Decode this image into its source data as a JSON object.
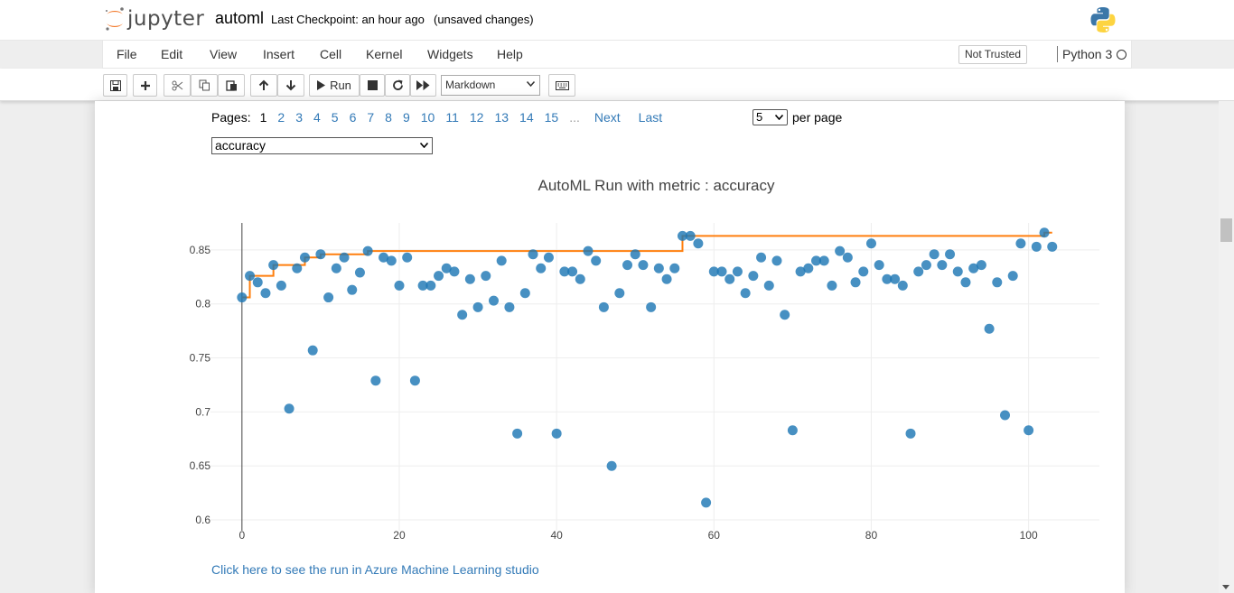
{
  "header": {
    "logo_text": "jupyter",
    "notebook_name": "automl",
    "checkpoint": "Last Checkpoint: an hour ago",
    "autosave": "(unsaved changes)"
  },
  "menubar": {
    "items": [
      "File",
      "Edit",
      "View",
      "Insert",
      "Cell",
      "Kernel",
      "Widgets",
      "Help"
    ],
    "trust": "Not Trusted",
    "kernel": "Python 3"
  },
  "toolbar": {
    "run_label": "Run",
    "cell_type": "Markdown",
    "icons": [
      "save-icon",
      "plus-icon",
      "scissors-icon",
      "copy-icon",
      "paste-icon",
      "arrow-up-icon",
      "arrow-down-icon",
      "play-icon",
      "stop-icon",
      "restart-icon",
      "fast-forward-icon",
      "keyboard-icon"
    ]
  },
  "pager": {
    "label": "Pages:",
    "pages": [
      "1",
      "2",
      "3",
      "4",
      "5",
      "6",
      "7",
      "8",
      "9",
      "10",
      "11",
      "12",
      "13",
      "14",
      "15"
    ],
    "current": "1",
    "ellipsis": "...",
    "next": "Next",
    "last": "Last",
    "per_page_value": "5",
    "per_page_label": "per page"
  },
  "metric_select": {
    "value": "accuracy"
  },
  "link": {
    "azure": "Click here to see the run in Azure Machine Learning studio"
  },
  "chart_data": {
    "type": "scatter",
    "title": "AutoML Run with metric : accuracy",
    "xlabel": "",
    "ylabel": "",
    "xlim": [
      -4,
      109
    ],
    "ylim": [
      0.59,
      0.875
    ],
    "x_ticks": [
      "0",
      "20",
      "40",
      "60",
      "80",
      "100"
    ],
    "y_ticks": [
      "0.6",
      "0.65",
      "0.7",
      "0.75",
      "0.8",
      "0.85"
    ],
    "grid": true,
    "legend": "none",
    "colors": {
      "points": "#1f77b4",
      "best_line": "#ff7f0e"
    },
    "series": [
      {
        "type": "scatter",
        "x": [
          0,
          1,
          2,
          3,
          4,
          5,
          6,
          7,
          8,
          9,
          10,
          11,
          12,
          13,
          14,
          15,
          16,
          17,
          18,
          19,
          20,
          21,
          22,
          23,
          24,
          25,
          26,
          27,
          28,
          29,
          30,
          31,
          32,
          33,
          34,
          35,
          36,
          37,
          38,
          39,
          40,
          41,
          42,
          43,
          44,
          45,
          46,
          47,
          48,
          49,
          50,
          51,
          52,
          53,
          54,
          55,
          56,
          57,
          58,
          59,
          60,
          61,
          62,
          63,
          64,
          65,
          66,
          67,
          68,
          69,
          70,
          71,
          72,
          73,
          74,
          75,
          76,
          77,
          78,
          79,
          80,
          81,
          82,
          83,
          84,
          85,
          86,
          87,
          88,
          89,
          90,
          91,
          92,
          93,
          94,
          95,
          96,
          97,
          98,
          99,
          100,
          101,
          102,
          103
        ],
        "y": [
          0.806,
          0.826,
          0.82,
          0.81,
          0.836,
          0.817,
          0.703,
          0.833,
          0.843,
          0.757,
          0.846,
          0.806,
          0.833,
          0.843,
          0.813,
          0.829,
          0.849,
          0.729,
          0.843,
          0.84,
          0.817,
          0.843,
          0.729,
          0.817,
          0.817,
          0.826,
          0.833,
          0.83,
          0.79,
          0.823,
          0.797,
          0.826,
          0.803,
          0.84,
          0.797,
          0.68,
          0.81,
          0.846,
          0.833,
          0.843,
          0.68,
          0.83,
          0.83,
          0.823,
          0.849,
          0.84,
          0.797,
          0.65,
          0.81,
          0.836,
          0.846,
          0.836,
          0.797,
          0.833,
          0.823,
          0.833,
          0.863,
          0.863,
          0.856,
          0.616,
          0.83,
          0.83,
          0.823,
          0.83,
          0.81,
          0.826,
          0.843,
          0.817,
          0.84,
          0.79,
          0.683,
          0.83,
          0.833,
          0.84,
          0.84,
          0.817,
          0.849,
          0.843,
          0.82,
          0.83,
          0.856,
          0.836,
          0.823,
          0.823,
          0.817,
          0.68,
          0.83,
          0.836,
          0.846,
          0.836,
          0.846,
          0.83,
          0.82,
          0.833,
          0.836,
          0.777,
          0.82,
          0.697,
          0.826,
          0.856,
          0.683,
          0.853,
          0.866,
          0.853
        ]
      },
      {
        "type": "step",
        "x": [
          0,
          1,
          4,
          8,
          10,
          16,
          56,
          102,
          103
        ],
        "y": [
          0.806,
          0.826,
          0.836,
          0.843,
          0.846,
          0.849,
          0.863,
          0.866,
          0.866
        ]
      }
    ]
  }
}
